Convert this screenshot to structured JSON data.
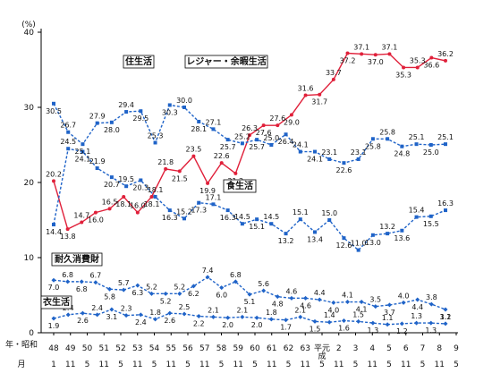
{
  "chart_data": {
    "type": "line",
    "ylabel": "(%)",
    "ylim": [
      0,
      40
    ],
    "yticks": [
      0,
      10,
      20,
      30,
      40
    ],
    "grid": false,
    "x_labels_top": [
      "48",
      "49",
      "50",
      "51",
      "52",
      "53",
      "54",
      "55",
      "56",
      "57",
      "58",
      "59",
      "60",
      "61",
      "62",
      "63",
      "平元",
      "2",
      "3",
      "4",
      "5",
      "6",
      "7",
      "8",
      "9"
    ],
    "x_labels_bottom": [
      "1",
      "11",
      "5",
      "11",
      "5",
      "11",
      "5",
      "11",
      "5",
      "11",
      "5",
      "11",
      "5",
      "11",
      "5",
      "11",
      "5",
      "11",
      "5",
      "11",
      "5",
      "11",
      "5",
      "11",
      "5"
    ],
    "x_labels_top_extra": [
      "1",
      "11"
    ],
    "row_label_top": "年・昭和",
    "row_label_bottom": "月",
    "era_label": "成",
    "colors": {
      "red": "#e0203a",
      "blue": "#1f63c8"
    },
    "series": [
      {
        "name": "レジャー・余暇生活",
        "color": "#e0203a",
        "marker": "dot",
        "values": [
          20.2,
          13.8,
          14.7,
          16.0,
          16.5,
          18.1,
          16.0,
          18.1,
          21.8,
          21.5,
          23.5,
          19.9,
          22.6,
          21.2,
          26.3,
          27.6,
          27.6,
          29.0,
          31.6,
          31.7,
          33.7,
          37.2,
          37.1,
          37.0,
          37.1,
          35.3,
          35.3,
          36.6,
          36.2
        ]
      },
      {
        "name": "住生活",
        "color": "#1f63c8",
        "marker": "square",
        "values": [
          30.5,
          26.7,
          25.1,
          27.9,
          28.0,
          29.4,
          29.5,
          25.3,
          30.3,
          30.0,
          28.1,
          27.1,
          25.7,
          25.2,
          25.7,
          25.0,
          26.4,
          24.1,
          24.1,
          23.1,
          22.6,
          23.1,
          25.8,
          25.8,
          24.8,
          25.1,
          25.0,
          25.1
        ]
      },
      {
        "name": "食生活",
        "color": "#1f63c8",
        "marker": "square",
        "values": [
          14.4,
          24.5,
          24.1,
          21.9,
          20.7,
          19.5,
          20.3,
          18.1,
          16.3,
          15.2,
          17.3,
          17.1,
          16.3,
          14.5,
          15.1,
          14.5,
          13.2,
          15.1,
          13.4,
          15.0,
          12.6,
          11.0,
          13.0,
          13.2,
          13.6,
          15.4,
          15.5,
          16.3
        ]
      },
      {
        "name": "耐久消費財",
        "color": "#1f63c8",
        "marker": "diamond",
        "values": [
          7.0,
          6.8,
          6.8,
          6.7,
          5.8,
          5.7,
          6.3,
          5.2,
          5.2,
          5.2,
          6.2,
          7.4,
          6.0,
          6.8,
          5.1,
          5.6,
          4.8,
          4.6,
          4.6,
          4.4,
          4.0,
          4.1,
          4.1,
          3.5,
          3.7,
          4.0,
          4.4,
          3.8,
          3.1
        ]
      },
      {
        "name": "衣生活",
        "color": "#1f63c8",
        "marker": "diamond",
        "values": [
          1.9,
          2.4,
          2.6,
          2.4,
          3.1,
          2.3,
          2.4,
          1.8,
          2.6,
          2.5,
          2.2,
          2.1,
          2.0,
          2.1,
          2.0,
          1.8,
          1.7,
          2.1,
          1.5,
          1.4,
          1.6,
          1.5,
          1.3,
          1.1,
          1.2,
          1.3,
          1.3,
          1.2
        ]
      }
    ],
    "label_texts": {
      "red": [
        "20.2",
        "13.8",
        "14.7",
        "16.0",
        "16.5",
        "18.1",
        "16.0",
        "18.1",
        "21.8",
        "21.5",
        "23.5",
        "19.9",
        "22.6",
        "21.2",
        "26.3",
        "27.6",
        "27.6",
        "29.0",
        "31.6",
        "31.7",
        "33.7",
        "37.2",
        "37.1",
        "37.0",
        "37.1",
        "35.3",
        "35.3",
        "36.6",
        "36.2"
      ],
      "ju": [
        "30.5",
        "26.7",
        "25.1",
        "27.9",
        "28.0",
        "29.4",
        "29.5",
        "25.3",
        "30.3",
        "30.0",
        "28.1",
        "27.1",
        "25.7",
        "25.2",
        "25.7",
        "25.0",
        "26.4",
        "24.1",
        "24.1",
        "23.1",
        "22.6",
        "23.1",
        "25.8",
        "25.8",
        "24.8",
        "25.1",
        "25.0",
        "25.1"
      ],
      "shoku": [
        "14.4",
        "24.5",
        "24.1",
        "21.9",
        "20.7",
        "19.5",
        "20.3",
        "18.1",
        "16.3",
        "15.2",
        "17.3",
        "17.1",
        "16.3",
        "14.5",
        "15.1",
        "14.5",
        "13.2",
        "15.1",
        "13.4",
        "15.0",
        "12.6",
        "11.0",
        "13.0",
        "13.2",
        "13.6",
        "15.4",
        "15.5",
        "16.3"
      ],
      "taikyu": [
        "7.0",
        "6.8",
        "6.8",
        "6.7",
        "5.8",
        "5.7",
        "6.3",
        "5.2",
        "5.2",
        "5.2",
        "6.2",
        "7.4",
        "6.0",
        "6.8",
        "5.1",
        "5.6",
        "4.8",
        "4.6",
        "4.6",
        "4.4",
        "4.0",
        "4.1",
        "4.1",
        "3.5",
        "3.7",
        "4.0",
        "4.4",
        "3.8",
        "3.1"
      ],
      "i": [
        "1.9",
        "2.4",
        "2.6",
        "2.4",
        "3.1",
        "2.3",
        "2.4",
        "1.8",
        "2.6",
        "2.5",
        "2.2",
        "2.1",
        "2.0",
        "2.1",
        "2.0",
        "1.8",
        "1.7",
        "2.1",
        "1.5",
        "1.4",
        "1.6",
        "1.5",
        "1.3",
        "1.1",
        "1.2",
        "1.3",
        "1.3",
        "1.2"
      ]
    }
  }
}
